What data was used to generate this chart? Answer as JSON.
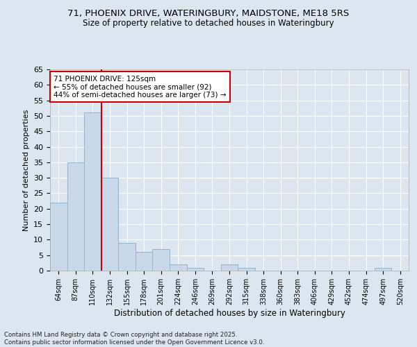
{
  "title": "71, PHOENIX DRIVE, WATERINGBURY, MAIDSTONE, ME18 5RS",
  "subtitle": "Size of property relative to detached houses in Wateringbury",
  "xlabel": "Distribution of detached houses by size in Wateringbury",
  "ylabel": "Number of detached properties",
  "bar_color": "#c8d8e8",
  "bar_edge_color": "#92b4cc",
  "background_color": "#dce6f0",
  "fig_background_color": "#dce6f0",
  "grid_color": "#ffffff",
  "vline_color": "#cc0000",
  "vline_index": 2,
  "annotation_text": "71 PHOENIX DRIVE: 125sqm\n← 55% of detached houses are smaller (92)\n44% of semi-detached houses are larger (73) →",
  "annotation_box_facecolor": "#ffffff",
  "annotation_box_edgecolor": "#cc0000",
  "categories": [
    "64sqm",
    "87sqm",
    "110sqm",
    "132sqm",
    "155sqm",
    "178sqm",
    "201sqm",
    "224sqm",
    "246sqm",
    "269sqm",
    "292sqm",
    "315sqm",
    "338sqm",
    "360sqm",
    "383sqm",
    "406sqm",
    "429sqm",
    "452sqm",
    "474sqm",
    "497sqm",
    "520sqm"
  ],
  "values": [
    22,
    35,
    51,
    30,
    9,
    6,
    7,
    2,
    1,
    0,
    2,
    1,
    0,
    0,
    0,
    0,
    0,
    0,
    0,
    1,
    0
  ],
  "ylim": [
    0,
    65
  ],
  "yticks": [
    0,
    5,
    10,
    15,
    20,
    25,
    30,
    35,
    40,
    45,
    50,
    55,
    60,
    65
  ],
  "footnote": "Contains HM Land Registry data © Crown copyright and database right 2025.\nContains public sector information licensed under the Open Government Licence v3.0.",
  "figsize": [
    6.0,
    5.0
  ],
  "dpi": 100
}
